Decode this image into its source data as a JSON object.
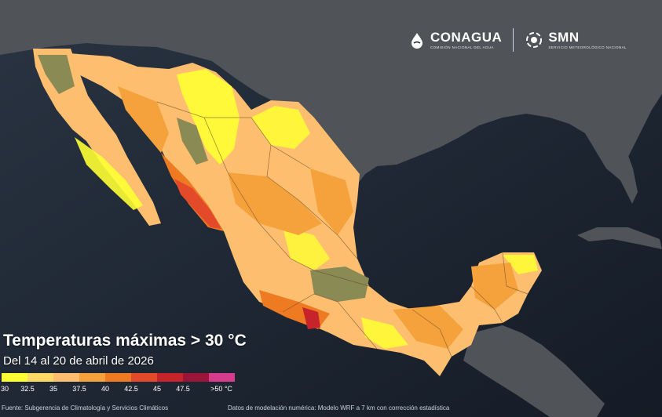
{
  "logos": {
    "conagua_name": "CONAGUA",
    "conagua_sub": "COMISIÓN NACIONAL DEL AGUA",
    "smn_name": "SMN",
    "smn_sub": "SERVICIO METEOROLÓGICO NACIONAL"
  },
  "title": "Temperaturas máximas > 30 °C",
  "subtitle": "Del 14 al 20 de abril de 2026",
  "legend": {
    "colors": [
      "#ffff33",
      "#ffd966",
      "#fdbf6f",
      "#f5a23c",
      "#ee7a22",
      "#e34a2a",
      "#c7232b",
      "#9a1537",
      "#d63b8c"
    ],
    "labels": [
      "30",
      "32.5",
      "35",
      "37.5",
      "40",
      "42.5",
      "45",
      "47.5",
      ">50 °C"
    ]
  },
  "footer": {
    "source": "Fuente: Subgerencia de Climatología y Servicios Climáticos",
    "model": "Datos de modelación numérica: Modelo WRF a 7 km con corrección estadística"
  },
  "colors": {
    "ocean": "#1a2230",
    "land": "#4a4d52",
    "mexico_base": "#fdbf6f"
  }
}
